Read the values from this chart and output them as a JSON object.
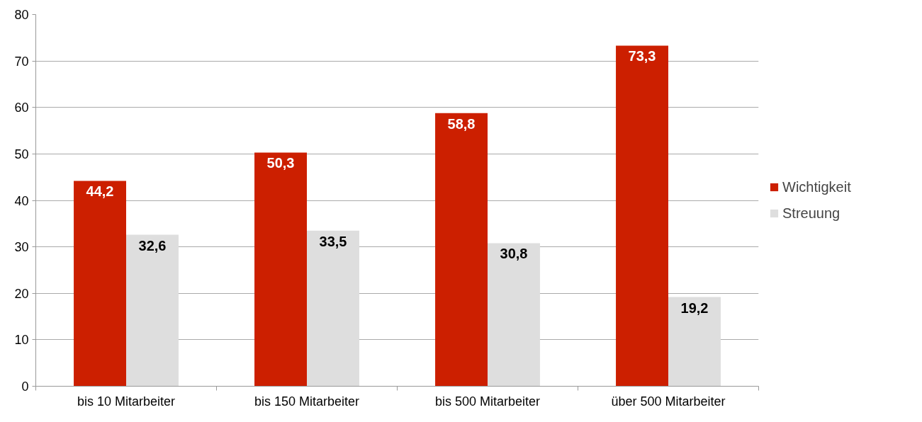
{
  "chart_data": {
    "type": "bar",
    "categories": [
      "bis 10 Mitarbeiter",
      "bis 150 Mitarbeiter",
      "bis 500 Mitarbeiter",
      "über 500 Mitarbeiter"
    ],
    "series": [
      {
        "name": "Wichtigkeit",
        "color": "#cc1f00",
        "values": [
          44.2,
          50.3,
          58.8,
          73.3
        ],
        "value_labels": [
          "44,2",
          "50,3",
          "58,8",
          "73,3"
        ]
      },
      {
        "name": "Streuung",
        "color": "#dedede",
        "values": [
          32.6,
          33.5,
          30.8,
          19.2
        ],
        "value_labels": [
          "32,6",
          "33,5",
          "30,8",
          "19,2"
        ]
      }
    ],
    "ylim": [
      0,
      80
    ],
    "yticks": [
      0,
      10,
      20,
      30,
      40,
      50,
      60,
      70,
      80
    ],
    "grid": "y",
    "legend": "right"
  }
}
